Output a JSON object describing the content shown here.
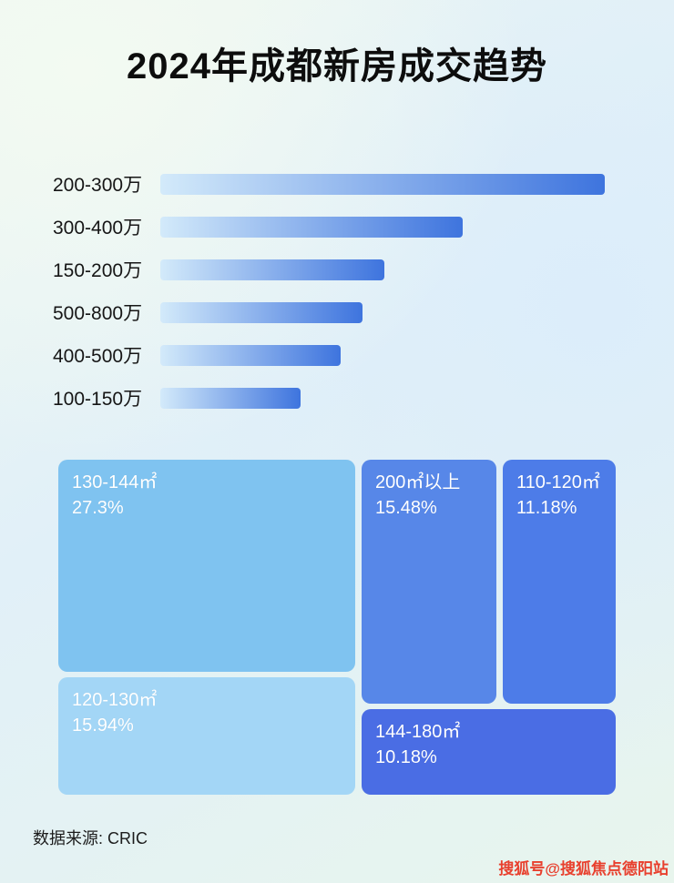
{
  "page": {
    "title": "2024年成都新房成交趋势",
    "source_label": "数据来源:  CRIC",
    "watermark": "搜狐号@搜狐焦点德阳站"
  },
  "colors": {
    "bar_gradient_start": "#d3eafa",
    "bar_gradient_end": "#3e74de",
    "title_color": "#0d0d0d",
    "watermark_color": "#e8402e"
  },
  "chart_data": [
    {
      "type": "bar",
      "title": "2024年成都新房成交趋势",
      "orientation": "horizontal",
      "categories": [
        "200-300万",
        "300-400万",
        "150-200万",
        "500-800万",
        "400-500万",
        "100-150万"
      ],
      "values_pct": [
        100,
        68,
        50.5,
        45.4,
        40.6,
        31.5
      ],
      "values_note": "no numeric labels shown in image; values are bar lengths as % of longest bar",
      "grid": false,
      "legend": false
    },
    {
      "type": "treemap",
      "items": [
        {
          "label": "130-144㎡",
          "value": 27.3,
          "display": "27.3%",
          "color": "#7fc3f0"
        },
        {
          "label": "120-130㎡",
          "value": 15.94,
          "display": "15.94%",
          "color": "#a3d6f6"
        },
        {
          "label": "200㎡以上",
          "value": 15.48,
          "display": "15.48%",
          "color": "#5787e8"
        },
        {
          "label": "110-120㎡",
          "value": 11.18,
          "display": "11.18%",
          "color": "#4d7ce8"
        },
        {
          "label": "144-180㎡",
          "value": 10.18,
          "display": "10.18%",
          "color": "#4a6de4"
        }
      ]
    }
  ]
}
